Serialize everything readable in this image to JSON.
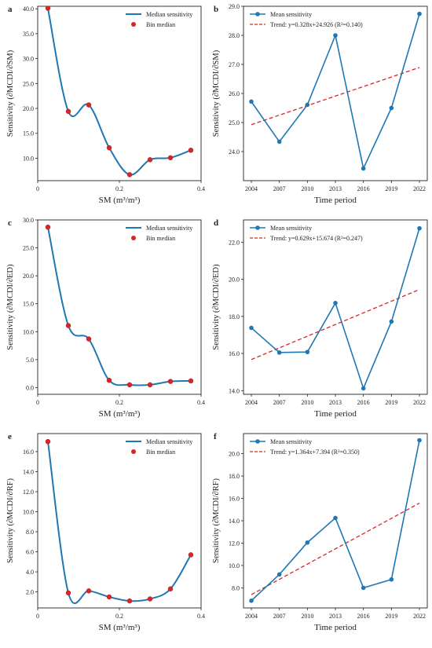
{
  "colors": {
    "line": "#1f77b4",
    "points_left": "#d62728",
    "trend": "#d62728",
    "axis": "#222222"
  },
  "chart_data": [
    {
      "panel": "a",
      "type": "line",
      "xlabel": "SM (m³/m³)",
      "ylabel": "Sensitivity (∂MCDI/∂SM)",
      "xlim": [
        0,
        0.4
      ],
      "ylim": [
        5.5,
        40.5
      ],
      "xticks": [
        0,
        0.2,
        0.4
      ],
      "xtick_labels": [
        "0",
        "0.2",
        "0.4"
      ],
      "yticks": [
        10,
        15,
        20,
        25,
        30,
        35,
        40
      ],
      "ytick_labels": [
        "10.0",
        "15.0",
        "20.0",
        "25.0",
        "30.0",
        "35.0",
        "40.0"
      ],
      "legend": {
        "position": "top-right",
        "entries": [
          "Median sensitivity",
          "Bin median"
        ]
      },
      "series": [
        {
          "name": "Median sensitivity",
          "kind": "smooth-line",
          "x": [
            0.025,
            0.075,
            0.125,
            0.175,
            0.225,
            0.275,
            0.325,
            0.375
          ],
          "y": [
            40.1,
            19.4,
            20.7,
            12.1,
            6.7,
            9.7,
            10.1,
            11.6
          ]
        },
        {
          "name": "Bin median",
          "kind": "points",
          "x": [
            0.025,
            0.075,
            0.125,
            0.175,
            0.225,
            0.275,
            0.325,
            0.375
          ],
          "y": [
            40.1,
            19.4,
            20.7,
            12.1,
            6.7,
            9.7,
            10.1,
            11.6
          ]
        }
      ]
    },
    {
      "panel": "b",
      "type": "line",
      "xlabel": "Time period",
      "ylabel": "Sensitivity (∂MCDI/∂SM)",
      "categories": [
        "2004",
        "2007",
        "2010",
        "2013",
        "2016",
        "2019",
        "2022"
      ],
      "ylim": [
        23.0,
        29.0
      ],
      "yticks": [
        24,
        25,
        26,
        27,
        28,
        29
      ],
      "ytick_labels": [
        "24.0",
        "25.0",
        "26.0",
        "27.0",
        "28.0",
        "29.0"
      ],
      "legend": {
        "position": "top-left",
        "entries": [
          "Mean sensitivity",
          "Trend: y=0.328x+24.926 (R²=0.140)"
        ]
      },
      "series": [
        {
          "name": "Mean sensitivity",
          "kind": "line-markers",
          "values": [
            25.72,
            24.34,
            25.61,
            28.0,
            23.42,
            25.5,
            28.74
          ]
        },
        {
          "name": "Trend: y=0.328x+24.926 (R²=0.140)",
          "kind": "trend",
          "slope": 0.328,
          "intercept": 24.926
        }
      ]
    },
    {
      "panel": "c",
      "type": "line",
      "xlabel": "SM (m³/m³)",
      "ylabel": "Sensitivity (∂MCDI/∂ED)",
      "xlim": [
        0,
        0.4
      ],
      "ylim": [
        -1.2,
        30.0
      ],
      "xticks": [
        0,
        0.2,
        0.4
      ],
      "xtick_labels": [
        "0",
        "0.2",
        "0.4"
      ],
      "yticks": [
        0,
        5,
        10,
        15,
        20,
        25,
        30
      ],
      "ytick_labels": [
        "0.0",
        "5.0",
        "10.0",
        "15.0",
        "20.0",
        "25.0",
        "30.0"
      ],
      "legend": {
        "position": "top-right",
        "entries": [
          "Median sensitivity",
          "Bin median"
        ]
      },
      "series": [
        {
          "name": "Median sensitivity",
          "kind": "smooth-line",
          "x": [
            0.025,
            0.075,
            0.125,
            0.175,
            0.225,
            0.275,
            0.325,
            0.375
          ],
          "y": [
            28.7,
            11.1,
            8.7,
            1.3,
            0.5,
            0.5,
            1.1,
            1.2
          ]
        },
        {
          "name": "Bin median",
          "kind": "points",
          "x": [
            0.025,
            0.075,
            0.125,
            0.175,
            0.225,
            0.275,
            0.325,
            0.375
          ],
          "y": [
            28.7,
            11.1,
            8.7,
            1.3,
            0.5,
            0.5,
            1.1,
            1.2
          ]
        }
      ]
    },
    {
      "panel": "d",
      "type": "line",
      "xlabel": "Time period",
      "ylabel": "Sensitivity (∂MCDI/∂ED)",
      "categories": [
        "2004",
        "2007",
        "2010",
        "2013",
        "2016",
        "2019",
        "2022"
      ],
      "ylim": [
        13.8,
        23.2
      ],
      "yticks": [
        14,
        16,
        18,
        20,
        22
      ],
      "ytick_labels": [
        "14.0",
        "16.0",
        "18.0",
        "20.0",
        "22.0"
      ],
      "legend": {
        "position": "top-left",
        "entries": [
          "Mean sensitivity",
          "Trend: y=0.629x+15.674 (R²=0.247)"
        ]
      },
      "series": [
        {
          "name": "Mean sensitivity",
          "kind": "line-markers",
          "values": [
            17.38,
            16.05,
            16.08,
            18.72,
            14.12,
            17.72,
            22.75
          ]
        },
        {
          "name": "Trend: y=0.629x+15.674 (R²=0.247)",
          "kind": "trend",
          "slope": 0.629,
          "intercept": 15.674
        }
      ]
    },
    {
      "panel": "e",
      "type": "line",
      "xlabel": "SM (m³/m³)",
      "ylabel": "Sensitivity (∂MCDI/∂RF)",
      "xlim": [
        0,
        0.4
      ],
      "ylim": [
        0.4,
        17.8
      ],
      "xticks": [
        0,
        0.2,
        0.4
      ],
      "xtick_labels": [
        "0",
        "0.2",
        "0.4"
      ],
      "yticks": [
        2,
        4,
        6,
        8,
        10,
        12,
        14,
        16
      ],
      "ytick_labels": [
        "2.0",
        "4.0",
        "6.0",
        "8.0",
        "10.0",
        "12.0",
        "14.0",
        "16.0"
      ],
      "legend": {
        "position": "top-right",
        "entries": [
          "Median sensitivity",
          "Bin median"
        ]
      },
      "series": [
        {
          "name": "Median sensitivity",
          "kind": "smooth-line",
          "x": [
            0.025,
            0.075,
            0.125,
            0.175,
            0.225,
            0.275,
            0.325,
            0.375
          ],
          "y": [
            17.0,
            1.9,
            2.1,
            1.5,
            1.1,
            1.3,
            2.3,
            5.7
          ]
        },
        {
          "name": "Bin median",
          "kind": "points",
          "x": [
            0.025,
            0.075,
            0.125,
            0.175,
            0.225,
            0.275,
            0.325,
            0.375
          ],
          "y": [
            17.0,
            1.9,
            2.1,
            1.5,
            1.1,
            1.3,
            2.3,
            5.7
          ]
        }
      ]
    },
    {
      "panel": "f",
      "type": "line",
      "xlabel": "Time period",
      "ylabel": "Sensitivity (∂MCDI/∂RF)",
      "categories": [
        "2004",
        "2007",
        "2010",
        "2013",
        "2016",
        "2019",
        "2022"
      ],
      "ylim": [
        6.2,
        21.8
      ],
      "yticks": [
        8,
        10,
        12,
        14,
        16,
        18,
        20
      ],
      "ytick_labels": [
        "8.0",
        "10.0",
        "12.0",
        "14.0",
        "16.0",
        "18.0",
        "20.0"
      ],
      "legend": {
        "position": "top-left",
        "entries": [
          "Mean sensitivity",
          "Trend: y=1.364x+7.394 (R²=0.350)"
        ]
      },
      "series": [
        {
          "name": "Mean sensitivity",
          "kind": "line-markers",
          "values": [
            6.85,
            9.2,
            12.05,
            14.25,
            8.0,
            8.75,
            21.2
          ]
        },
        {
          "name": "Trend: y=1.364x+7.394 (R²=0.350)",
          "kind": "trend",
          "slope": 1.364,
          "intercept": 7.394
        }
      ]
    }
  ]
}
